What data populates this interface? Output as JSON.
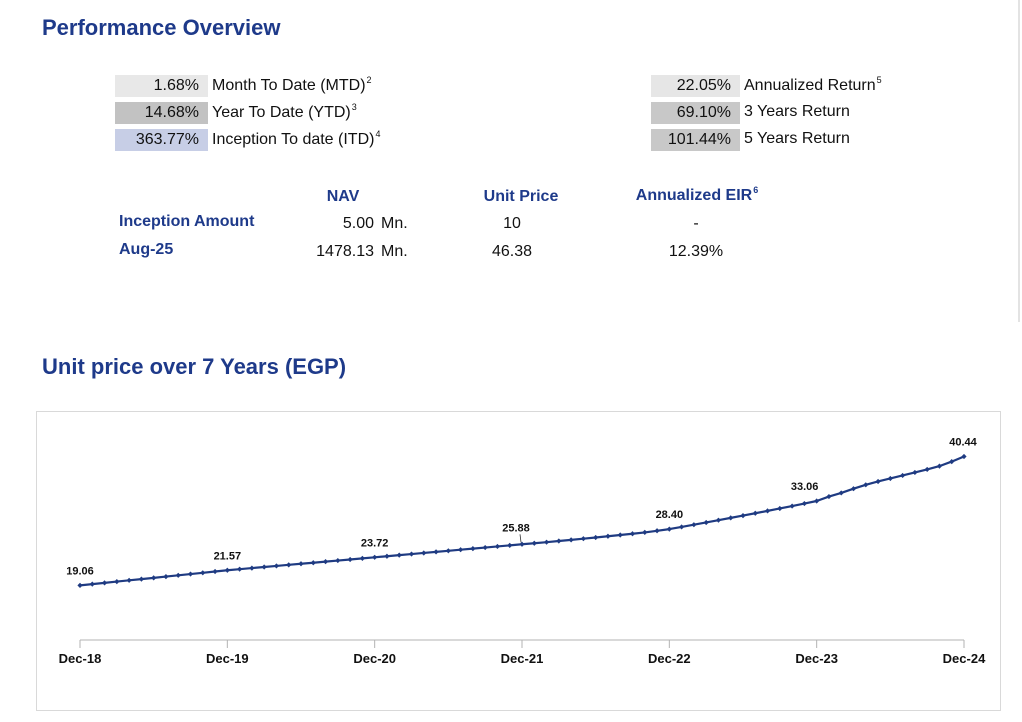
{
  "performance": {
    "title": "Performance Overview",
    "left_metrics": [
      {
        "value": "1.68%",
        "label": "Month To Date (MTD)",
        "note": "2",
        "shade": "#e8e8e8"
      },
      {
        "value": "14.68%",
        "label": "Year To Date (YTD)",
        "note": "3",
        "shade": "#c2c2c2"
      },
      {
        "value": "363.77%",
        "label": "Inception To date (ITD)",
        "note": "4",
        "shade": "#c7cee6"
      }
    ],
    "right_metrics": [
      {
        "value": "22.05%",
        "label": "Annualized Return",
        "note": "5",
        "shade": "#e6e6e6"
      },
      {
        "value": "69.10%",
        "label": "3 Years Return",
        "note": "",
        "shade": "#c8c8c8"
      },
      {
        "value": "101.44%",
        "label": "5 Years Return",
        "note": "",
        "shade": "#c8c8c8"
      }
    ]
  },
  "nav_table": {
    "headers": {
      "nav": "NAV",
      "unit_price": "Unit Price",
      "eir": "Annualized EIR",
      "eir_note": "6"
    },
    "rows": [
      {
        "label": "Inception Amount",
        "nav": "5.00",
        "nav_unit": "Mn.",
        "unit_price": "10",
        "eir": "-"
      },
      {
        "label": "Aug-25",
        "nav": "1478.13",
        "nav_unit": "Mn.",
        "unit_price": "46.38",
        "eir": "12.39%"
      }
    ]
  },
  "colors": {
    "heading": "#1e3a8a",
    "line": "#1f3b82",
    "axis": "#b3b3b3"
  },
  "chart_data": {
    "type": "line",
    "title": "Unit price over 7 Years (EGP)",
    "xlabel": "",
    "ylabel": "",
    "x_ticks": [
      "Dec-18",
      "Dec-19",
      "Dec-20",
      "Dec-21",
      "Dec-22",
      "Dec-23",
      "Dec-24"
    ],
    "ylim": [
      10,
      46.5
    ],
    "grid": false,
    "legend": "none",
    "marker": "diamond",
    "series": [
      {
        "values": [
          19.06,
          19.27,
          19.48,
          19.69,
          19.9,
          20.1,
          20.31,
          20.52,
          20.73,
          20.94,
          21.15,
          21.36,
          21.57,
          21.75,
          21.93,
          22.11,
          22.29,
          22.47,
          22.65,
          22.82,
          23.0,
          23.18,
          23.36,
          23.54,
          23.72,
          23.9,
          24.08,
          24.26,
          24.44,
          24.62,
          24.8,
          24.98,
          25.16,
          25.34,
          25.52,
          25.7,
          25.88,
          26.05,
          26.23,
          26.42,
          26.61,
          26.81,
          27.01,
          27.21,
          27.42,
          27.63,
          27.85,
          28.12,
          28.4,
          28.76,
          29.13,
          29.5,
          29.88,
          30.26,
          30.64,
          31.03,
          31.42,
          31.82,
          32.22,
          32.64,
          33.06,
          33.8,
          34.4,
          35.1,
          35.75,
          36.3,
          36.8,
          37.3,
          37.8,
          38.3,
          38.85,
          39.6,
          40.44
        ]
      }
    ],
    "data_labels": [
      "19.06",
      "21.57",
      "23.72",
      "25.88",
      "28.40",
      "33.06",
      "40.44"
    ]
  }
}
